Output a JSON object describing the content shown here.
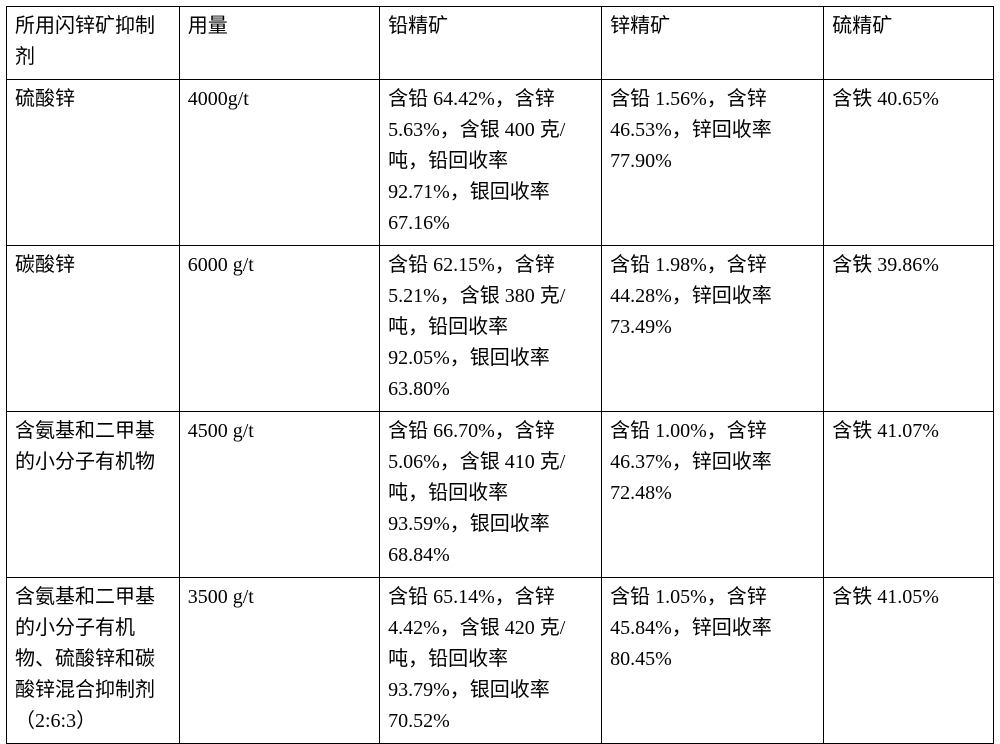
{
  "table": {
    "type": "table",
    "background_color": "#ffffff",
    "border_color": "#000000",
    "font_family": "SimSun, serif",
    "font_size_pt": 15,
    "column_widths_pct": [
      17.5,
      20.3,
      22.5,
      22.5,
      17.2
    ],
    "columns": [
      "所用闪锌矿抑制剂",
      "用量",
      "铅精矿",
      "锌精矿",
      "硫精矿"
    ],
    "rows": [
      {
        "agent": "硫酸锌",
        "dosage": "4000g/t",
        "lead_conc": "含铅 64.42%，含锌 5.63%，含银 400 克/吨，铅回收率 92.71%，银回收率 67.16%",
        "zinc_conc": "含铅 1.56%，含锌 46.53%，锌回收率 77.90%",
        "sulfur_conc": "含铁 40.65%"
      },
      {
        "agent": "碳酸锌",
        "dosage": "6000 g/t",
        "lead_conc": "含铅 62.15%，含锌 5.21%，含银 380 克/吨，铅回收率 92.05%，银回收率 63.80%",
        "zinc_conc": "含铅 1.98%，含锌 44.28%，锌回收率 73.49%",
        "sulfur_conc": "含铁 39.86%"
      },
      {
        "agent": "含氨基和二甲基的小分子有机物",
        "dosage": "4500 g/t",
        "lead_conc": "含铅 66.70%，含锌 5.06%，含银 410 克/吨，铅回收率 93.59%，银回收率 68.84%",
        "zinc_conc": "含铅 1.00%，含锌 46.37%，锌回收率 72.48%",
        "sulfur_conc": "含铁 41.07%"
      },
      {
        "agent": "含氨基和二甲基的小分子有机物、硫酸锌和碳酸锌混合抑制剂（2:6:3）",
        "dosage": "3500 g/t",
        "lead_conc": "含铅 65.14%，含锌 4.42%，含银 420 克/吨，铅回收率 93.79%，银回收率 70.52%",
        "zinc_conc": "含铅 1.05%，含锌 45.84%，锌回收率 80.45%",
        "sulfur_conc": "含铁 41.05%"
      }
    ]
  }
}
